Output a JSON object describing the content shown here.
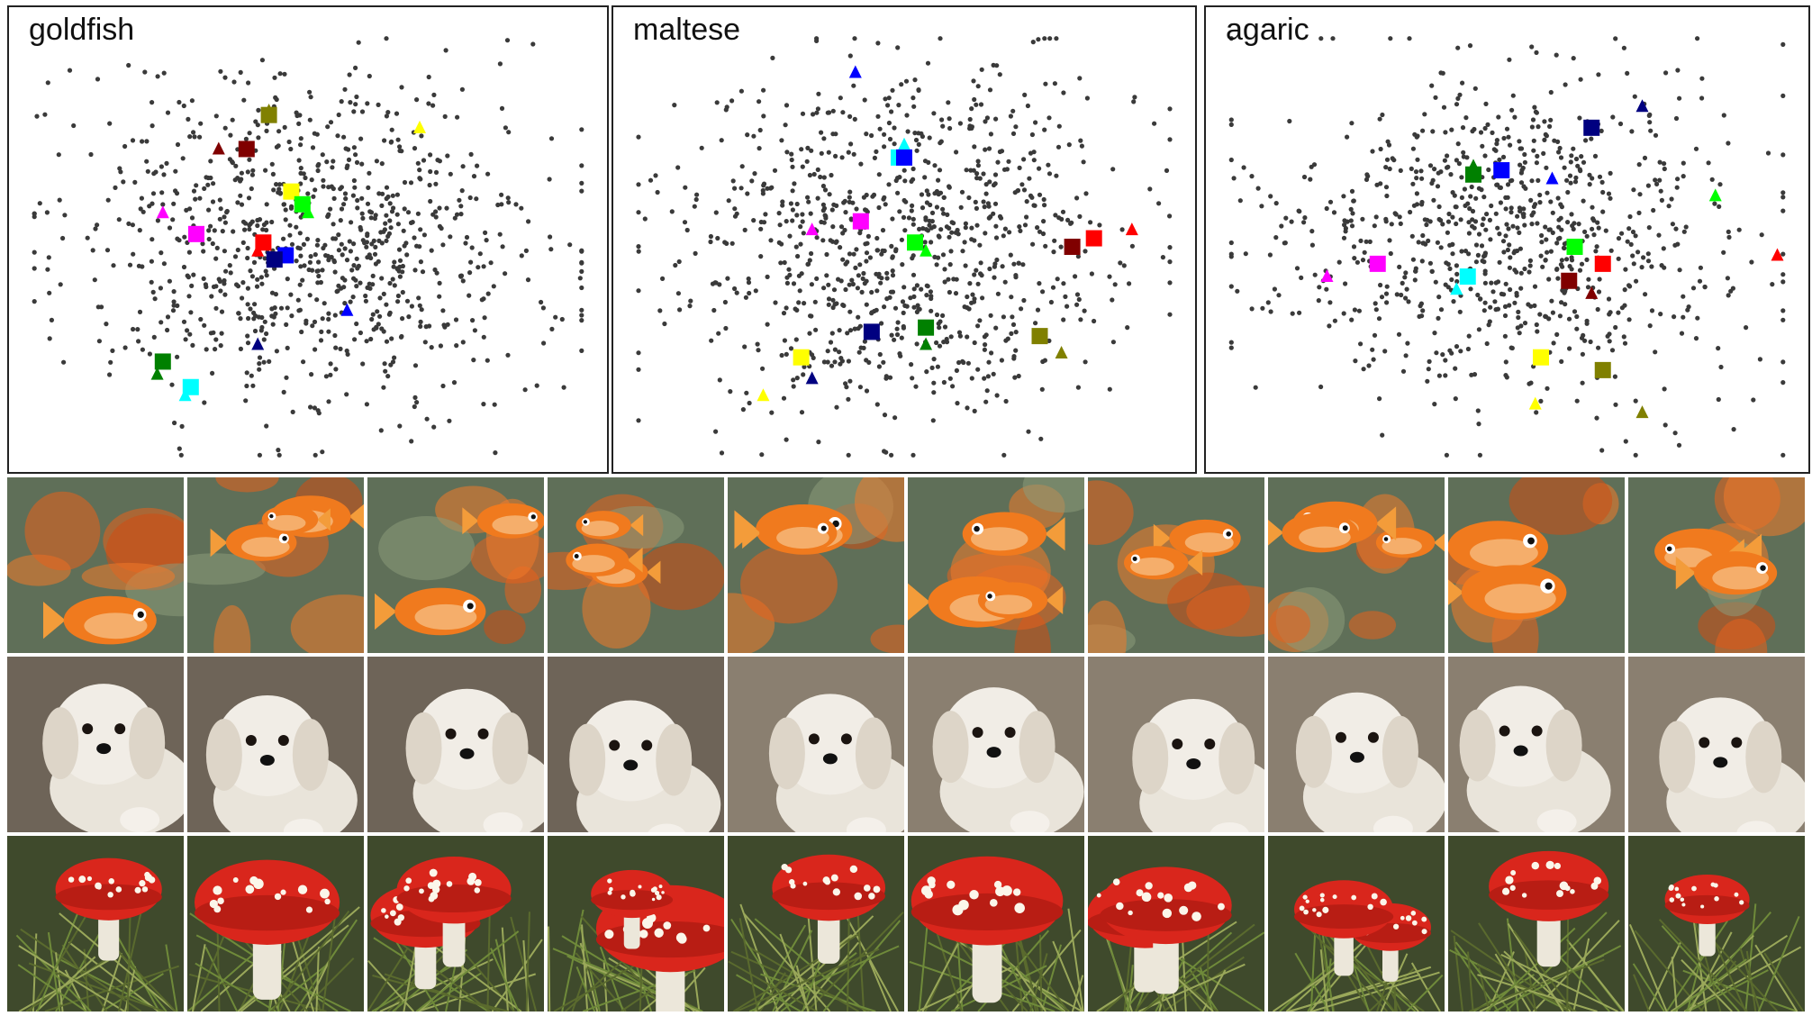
{
  "panels": [
    {
      "title": "goldfish",
      "id": "goldfish"
    },
    {
      "title": "maltese",
      "id": "maltese"
    },
    {
      "title": "agaric",
      "id": "agaric"
    }
  ],
  "grid": {
    "rows": [
      {
        "id": "goldfish",
        "kind": "goldfish",
        "count": 10
      },
      {
        "id": "maltese",
        "kind": "maltese",
        "count": 10
      },
      {
        "id": "agaric",
        "kind": "agaric",
        "count": 10
      }
    ]
  },
  "colors": {
    "background_points": "#3a3a3a",
    "markers": [
      "#ff00ff",
      "#00ffff",
      "#ffff00",
      "#00ff00",
      "#008000",
      "#0000ff",
      "#000080",
      "#ff0000",
      "#800000",
      "#808000"
    ]
  },
  "chart_data": [
    {
      "type": "scatter",
      "title": "goldfish",
      "xlabel": "",
      "ylabel": "",
      "grid": false,
      "background_point_count": 900,
      "series": [
        {
          "color": "#ff00ff",
          "square": [
            0.3,
            0.53
          ],
          "triangle": [
            0.24,
            0.58
          ]
        },
        {
          "color": "#00ffff",
          "square": [
            0.29,
            0.17
          ],
          "triangle": [
            0.28,
            0.15
          ]
        },
        {
          "color": "#ffff00",
          "square": [
            0.47,
            0.63
          ],
          "triangle": [
            0.7,
            0.78
          ]
        },
        {
          "color": "#00ff00",
          "square": [
            0.49,
            0.6
          ],
          "triangle": [
            0.5,
            0.58
          ]
        },
        {
          "color": "#008000",
          "square": [
            0.24,
            0.23
          ],
          "triangle": [
            0.23,
            0.2
          ]
        },
        {
          "color": "#0000ff",
          "square": [
            0.46,
            0.48
          ],
          "triangle": [
            0.57,
            0.35
          ]
        },
        {
          "color": "#000080",
          "square": [
            0.44,
            0.47
          ],
          "triangle": [
            0.41,
            0.27
          ]
        },
        {
          "color": "#ff0000",
          "square": [
            0.42,
            0.51
          ],
          "triangle": [
            0.41,
            0.49
          ]
        },
        {
          "color": "#800000",
          "square": [
            0.39,
            0.73
          ],
          "triangle": [
            0.34,
            0.73
          ]
        },
        {
          "color": "#808000",
          "square": [
            0.43,
            0.81
          ],
          "triangle": [
            0.43,
            0.82
          ]
        }
      ]
    },
    {
      "type": "scatter",
      "title": "maltese",
      "xlabel": "",
      "ylabel": "",
      "grid": false,
      "background_point_count": 900,
      "series": [
        {
          "color": "#ff00ff",
          "square": [
            0.42,
            0.56
          ],
          "triangle": [
            0.33,
            0.54
          ]
        },
        {
          "color": "#00ffff",
          "square": [
            0.49,
            0.71
          ],
          "triangle": [
            0.5,
            0.74
          ]
        },
        {
          "color": "#ffff00",
          "square": [
            0.31,
            0.24
          ],
          "triangle": [
            0.24,
            0.15
          ]
        },
        {
          "color": "#00ff00",
          "square": [
            0.52,
            0.51
          ],
          "triangle": [
            0.54,
            0.49
          ]
        },
        {
          "color": "#008000",
          "square": [
            0.54,
            0.31
          ],
          "triangle": [
            0.54,
            0.27
          ]
        },
        {
          "color": "#0000ff",
          "square": [
            0.5,
            0.71
          ],
          "triangle": [
            0.41,
            0.91
          ]
        },
        {
          "color": "#000080",
          "square": [
            0.44,
            0.3
          ],
          "triangle": [
            0.33,
            0.19
          ]
        },
        {
          "color": "#ff0000",
          "square": [
            0.85,
            0.52
          ],
          "triangle": [
            0.92,
            0.54
          ]
        },
        {
          "color": "#800000",
          "square": [
            0.81,
            0.5
          ],
          "triangle": [
            0.81,
            0.5
          ]
        },
        {
          "color": "#808000",
          "square": [
            0.75,
            0.29
          ],
          "triangle": [
            0.79,
            0.25
          ]
        }
      ]
    },
    {
      "type": "scatter",
      "title": "agaric",
      "xlabel": "",
      "ylabel": "",
      "grid": false,
      "background_point_count": 850,
      "series": [
        {
          "color": "#ff00ff",
          "square": [
            0.27,
            0.46
          ],
          "triangle": [
            0.18,
            0.43
          ]
        },
        {
          "color": "#00ffff",
          "square": [
            0.43,
            0.43
          ],
          "triangle": [
            0.41,
            0.4
          ]
        },
        {
          "color": "#ffff00",
          "square": [
            0.56,
            0.24
          ],
          "triangle": [
            0.55,
            0.13
          ]
        },
        {
          "color": "#00ff00",
          "square": [
            0.62,
            0.5
          ],
          "triangle": [
            0.87,
            0.62
          ]
        },
        {
          "color": "#008000",
          "square": [
            0.44,
            0.67
          ],
          "triangle": [
            0.44,
            0.69
          ]
        },
        {
          "color": "#0000ff",
          "square": [
            0.49,
            0.68
          ],
          "triangle": [
            0.58,
            0.66
          ]
        },
        {
          "color": "#000080",
          "square": [
            0.65,
            0.78
          ],
          "triangle": [
            0.74,
            0.83
          ]
        },
        {
          "color": "#ff0000",
          "square": [
            0.67,
            0.46
          ],
          "triangle": [
            0.98,
            0.48
          ]
        },
        {
          "color": "#800000",
          "square": [
            0.61,
            0.42
          ],
          "triangle": [
            0.65,
            0.39
          ]
        },
        {
          "color": "#808000",
          "square": [
            0.67,
            0.21
          ],
          "triangle": [
            0.74,
            0.11
          ]
        }
      ]
    }
  ]
}
